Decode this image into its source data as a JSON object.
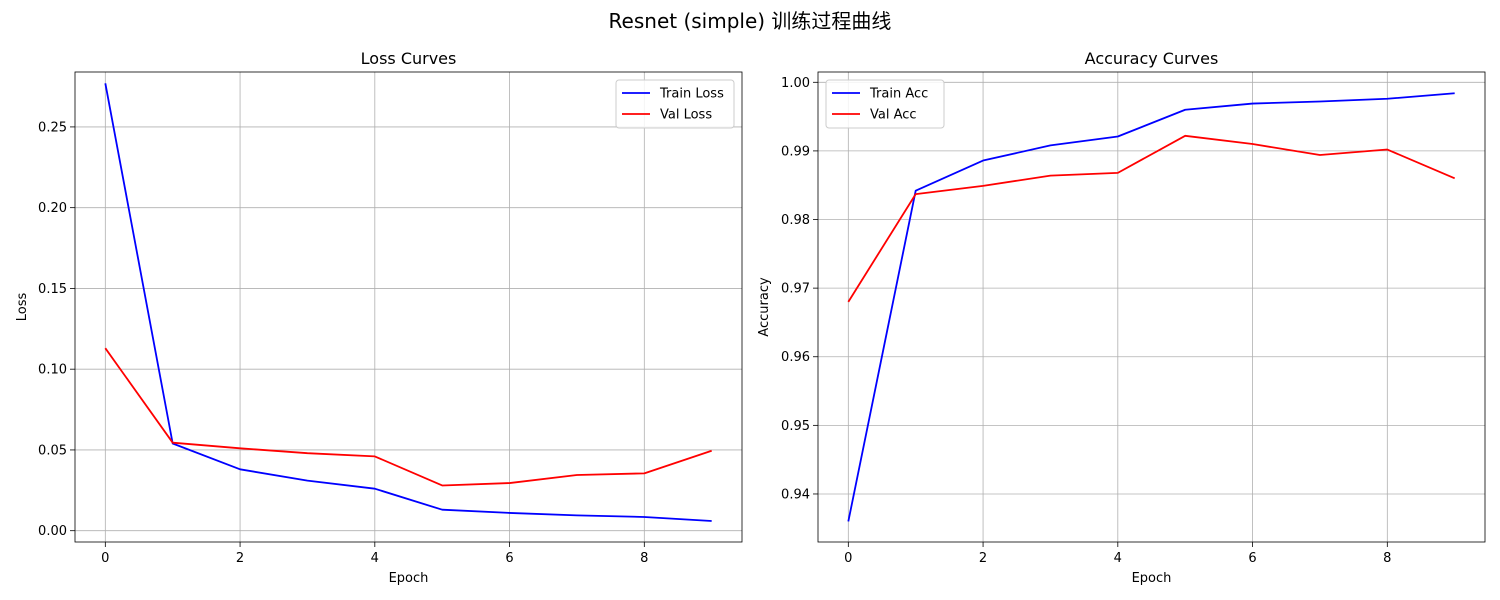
{
  "figure": {
    "title": "Resnet (simple) 训练过程曲线"
  },
  "chart_data": [
    {
      "type": "line",
      "title": "Loss Curves",
      "xlabel": "Epoch",
      "ylabel": "Loss",
      "x": [
        0,
        1,
        2,
        3,
        4,
        5,
        6,
        7,
        8,
        9
      ],
      "xlim": [
        -0.45,
        9.45
      ],
      "ylim": [
        -0.007,
        0.284
      ],
      "xticks": [
        0,
        2,
        4,
        6,
        8
      ],
      "yticks": [
        0.0,
        0.05,
        0.1,
        0.15,
        0.2,
        0.25
      ],
      "ytick_labels": [
        "0.00",
        "0.05",
        "0.10",
        "0.15",
        "0.20",
        "0.25"
      ],
      "grid": true,
      "legend_position": "upper right",
      "series": [
        {
          "name": "Train Loss",
          "color": "#0000ff",
          "values": [
            0.277,
            0.054,
            0.038,
            0.031,
            0.026,
            0.013,
            0.011,
            0.0095,
            0.0085,
            0.006
          ]
        },
        {
          "name": "Val Loss",
          "color": "#ff0000",
          "values": [
            0.113,
            0.0545,
            0.051,
            0.048,
            0.046,
            0.028,
            0.0295,
            0.0345,
            0.0355,
            0.0495
          ]
        }
      ]
    },
    {
      "type": "line",
      "title": "Accuracy Curves",
      "xlabel": "Epoch",
      "ylabel": "Accuracy",
      "x": [
        0,
        1,
        2,
        3,
        4,
        5,
        6,
        7,
        8,
        9
      ],
      "xlim": [
        -0.45,
        9.45
      ],
      "ylim": [
        0.933,
        1.0015
      ],
      "xticks": [
        0,
        2,
        4,
        6,
        8
      ],
      "yticks": [
        0.94,
        0.95,
        0.96,
        0.97,
        0.98,
        0.99,
        1.0
      ],
      "ytick_labels": [
        "0.94",
        "0.95",
        "0.96",
        "0.97",
        "0.98",
        "0.99",
        "1.00"
      ],
      "grid": true,
      "legend_position": "upper left",
      "series": [
        {
          "name": "Train Acc",
          "color": "#0000ff",
          "values": [
            0.936,
            0.9842,
            0.9886,
            0.9908,
            0.9921,
            0.996,
            0.9969,
            0.9972,
            0.9976,
            0.9984
          ]
        },
        {
          "name": "Val Acc",
          "color": "#ff0000",
          "values": [
            0.968,
            0.9837,
            0.9849,
            0.9864,
            0.9868,
            0.9922,
            0.991,
            0.9894,
            0.9902,
            0.986
          ]
        }
      ]
    }
  ]
}
